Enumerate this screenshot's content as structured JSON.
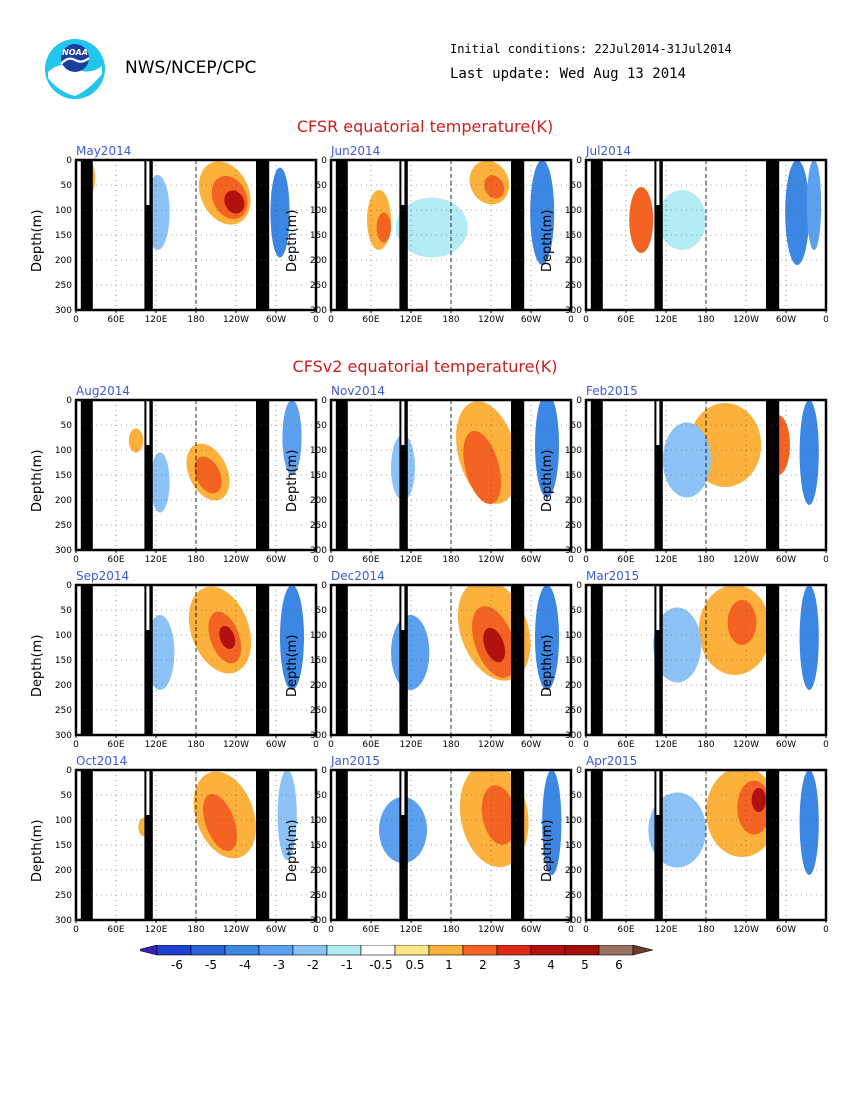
{
  "header": {
    "org": "NWS/NCEP/CPC",
    "initial_conditions": "Initial conditions: 22Jul2014-31Jul2014",
    "last_update": "Last update: Wed Aug 13 2014",
    "logo_text": "NOAA"
  },
  "sections": [
    {
      "title": "CFSR equatorial temperature(K)"
    },
    {
      "title": "CFSv2 equatorial temperature(K)"
    }
  ],
  "chart_data": {
    "type": "heatmap",
    "ylabel": "Depth(m)",
    "xticks": [
      "0",
      "60E",
      "120E",
      "180",
      "120W",
      "60W",
      "0"
    ],
    "yticks": [
      "0",
      "50",
      "100",
      "150",
      "200",
      "250",
      "300"
    ],
    "ylim": [
      300,
      0
    ],
    "grid": true,
    "panels": [
      {
        "label": "May2014",
        "section": 0
      },
      {
        "label": "Jun2014",
        "section": 0
      },
      {
        "label": "Jul2014",
        "section": 0
      },
      {
        "label": "Aug2014",
        "section": 1
      },
      {
        "label": "Nov2014",
        "section": 1
      },
      {
        "label": "Feb2015",
        "section": 1
      },
      {
        "label": "Sep2014",
        "section": 1
      },
      {
        "label": "Dec2014",
        "section": 1
      },
      {
        "label": "Mar2015",
        "section": 1
      },
      {
        "label": "Oct2014",
        "section": 1
      },
      {
        "label": "Jan2015",
        "section": 1
      },
      {
        "label": "Apr2015",
        "section": 1
      }
    ],
    "colorbar": {
      "labels": [
        "-6",
        "-5",
        "-4",
        "-3",
        "-2",
        "-1",
        "-0.5",
        "0.5",
        "1",
        "2",
        "3",
        "4",
        "5",
        "6"
      ],
      "colors": [
        "#3a1fb5",
        "#1f3fd0",
        "#2a63d8",
        "#3c86e4",
        "#5ea0f0",
        "#8cc2f6",
        "#b4ecf6",
        "#ffffff",
        "#fde68a",
        "#fbb13c",
        "#f36322",
        "#dc2814",
        "#b31010",
        "#a01008",
        "#9b7060",
        "#6b3a2c"
      ]
    }
  }
}
